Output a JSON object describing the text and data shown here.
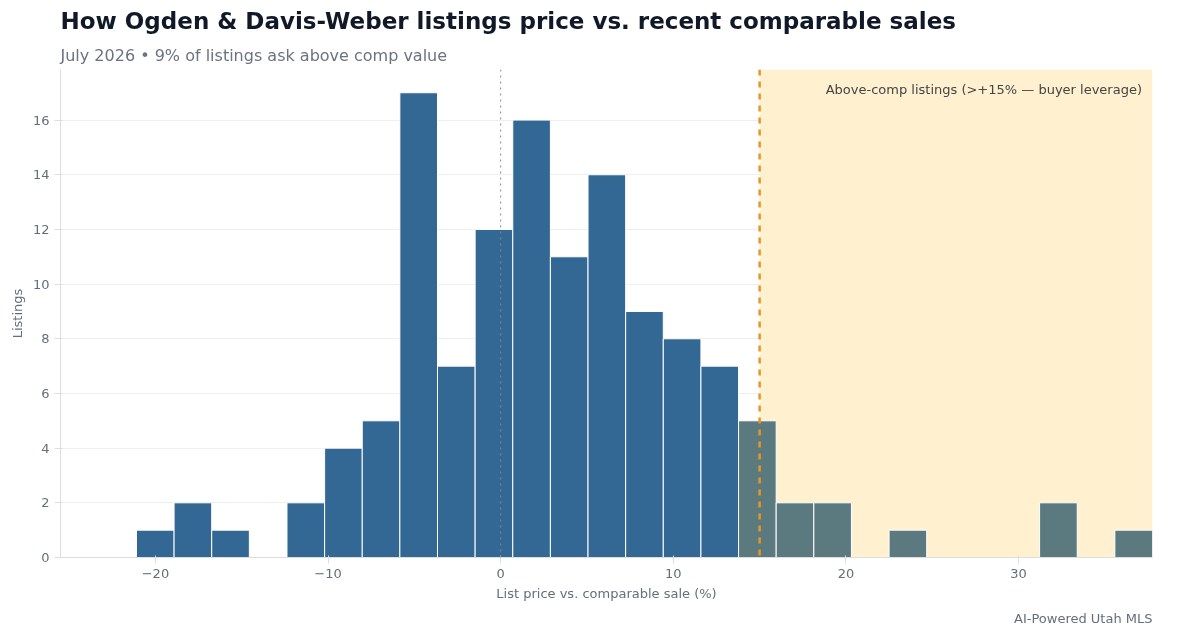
{
  "chart_data": {
    "type": "histogram",
    "title": "How Ogden & Davis-Weber listings price vs. recent comparable sales",
    "subtitle": "July 2026 • 9% of listings ask above comp value",
    "xlabel": "List price vs. comparable sale (%)",
    "ylabel": "Listings",
    "bins": [
      -21.1,
      -18.92,
      -16.74,
      -14.56,
      -12.38,
      -10.2,
      -8.02,
      -5.84,
      -3.66,
      -1.48,
      0.7,
      2.88,
      5.06,
      7.24,
      9.42,
      11.6,
      13.78,
      15.96,
      18.14,
      20.32,
      22.5,
      24.68,
      26.86,
      29.04,
      31.22,
      33.4,
      35.58,
      37.76
    ],
    "values": [
      1,
      2,
      1,
      0,
      2,
      4,
      5,
      17,
      7,
      12,
      16,
      11,
      14,
      9,
      8,
      7,
      5,
      2,
      2,
      0,
      1,
      0,
      0,
      0,
      2,
      0,
      1
    ],
    "colors": [
      "#336895",
      "#336895",
      "#336895",
      "#336895",
      "#336895",
      "#336895",
      "#336895",
      "#336895",
      "#336895",
      "#336895",
      "#336895",
      "#336895",
      "#336895",
      "#336895",
      "#336895",
      "#336895",
      "#5b7a80",
      "#5b7a80",
      "#5b7a80",
      "#5b7a80",
      "#5b7a80",
      "#5b7a80",
      "#5b7a80",
      "#5b7a80",
      "#5b7a80",
      "#5b7a80",
      "#5b7a80"
    ],
    "xlim": [
      -25.5,
      37.76
    ],
    "ylim": [
      0,
      17.85
    ],
    "xticks": [
      {
        "value": -20,
        "label": "−20"
      },
      {
        "value": -10,
        "label": "−10"
      },
      0,
      10,
      20,
      30
    ],
    "yticks": [
      0,
      2,
      4,
      6,
      8,
      10,
      12,
      14,
      16
    ],
    "grid": "y",
    "legend": "top right",
    "bands": [
      {
        "axis": "x",
        "from": 15,
        "to": 37.76,
        "label": "Above-comp listings (>+15% — buyer leverage)",
        "color": "#fff0d0"
      }
    ],
    "ref_lines": [
      {
        "axis": "x",
        "value": 15,
        "label": null,
        "color": "#e8961e",
        "line_style": "dashed"
      },
      {
        "axis": "x",
        "value": 0,
        "label": null,
        "color": "#888888",
        "line_style": "dotted"
      }
    ],
    "annotations": [
      "AI-Powered Utah MLS"
    ]
  }
}
